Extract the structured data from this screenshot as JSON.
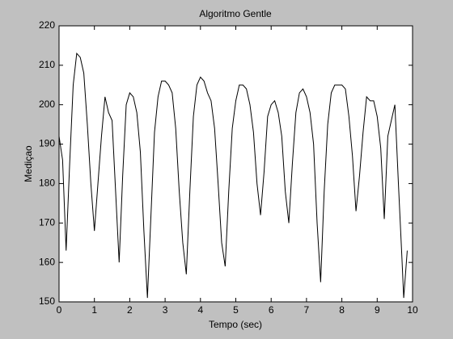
{
  "chart_data": {
    "type": "line",
    "title": "Algoritmo Gentle",
    "xlabel": "Tempo (sec)",
    "ylabel": "Mediçao",
    "x": [
      0,
      0.1,
      0.2,
      0.3,
      0.4,
      0.5,
      0.6,
      0.7,
      0.8,
      0.9,
      1.0,
      1.1,
      1.2,
      1.3,
      1.4,
      1.5,
      1.6,
      1.7,
      1.8,
      1.9,
      2.0,
      2.1,
      2.2,
      2.3,
      2.4,
      2.5,
      2.6,
      2.7,
      2.8,
      2.9,
      3.0,
      3.1,
      3.2,
      3.3,
      3.4,
      3.5,
      3.6,
      3.7,
      3.8,
      3.9,
      4.0,
      4.1,
      4.2,
      4.3,
      4.4,
      4.5,
      4.6,
      4.7,
      4.8,
      4.9,
      5.0,
      5.1,
      5.2,
      5.3,
      5.4,
      5.5,
      5.6,
      5.7,
      5.8,
      5.9,
      6.0,
      6.1,
      6.2,
      6.3,
      6.4,
      6.5,
      6.6,
      6.7,
      6.8,
      6.9,
      7.0,
      7.1,
      7.2,
      7.3,
      7.4,
      7.5,
      7.6,
      7.7,
      7.8,
      7.9,
      8.0,
      8.1,
      8.2,
      8.3,
      8.4,
      8.5,
      8.6,
      8.7,
      8.8,
      8.9,
      9.0,
      9.1,
      9.2,
      9.3,
      9.4,
      9.5,
      9.6,
      9.7,
      9.75,
      9.85
    ],
    "values": [
      192,
      186,
      163,
      185,
      205,
      213,
      212,
      208,
      195,
      180,
      168,
      180,
      192,
      202,
      198,
      196,
      178,
      160,
      182,
      200,
      203,
      202,
      198,
      188,
      168,
      151,
      172,
      193,
      202,
      206,
      206,
      205,
      203,
      194,
      178,
      165,
      157,
      178,
      197,
      205,
      207,
      206,
      203,
      201,
      194,
      180,
      165,
      159,
      178,
      194,
      201,
      205,
      205,
      204,
      200,
      193,
      180,
      172,
      183,
      197,
      200,
      201,
      198,
      192,
      178,
      170,
      185,
      198,
      203,
      204,
      202,
      198,
      190,
      170,
      155,
      178,
      195,
      203,
      205,
      205,
      205,
      204,
      197,
      187,
      173,
      182,
      193,
      202,
      201,
      201,
      197,
      189,
      171,
      192,
      196,
      200,
      180,
      161,
      151,
      163
    ],
    "color": "#000000",
    "xlim": [
      0,
      10
    ],
    "xticks": [
      0,
      1,
      2,
      3,
      4,
      5,
      6,
      7,
      8,
      9,
      10
    ],
    "ylim": [
      150,
      220
    ],
    "yticks": [
      150,
      160,
      170,
      180,
      190,
      200,
      210,
      220
    ]
  }
}
